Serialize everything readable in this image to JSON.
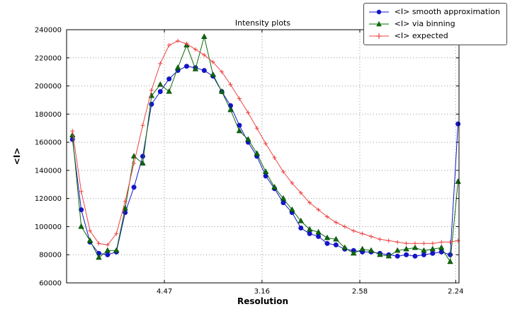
{
  "chart_data": {
    "type": "line",
    "title": "Intensity plots",
    "xlabel": "Resolution",
    "ylabel": "<I>",
    "grid": true,
    "legend_position": "upper right outside axes",
    "xlim": [
      0,
      0.201
    ],
    "ylim": [
      60000,
      240000
    ],
    "yticks": [
      60000,
      80000,
      100000,
      120000,
      140000,
      160000,
      180000,
      200000,
      220000,
      240000
    ],
    "xticks": [
      {
        "value": 0.0501,
        "label": "4.47"
      },
      {
        "value": 0.1001,
        "label": "3.16"
      },
      {
        "value": 0.1502,
        "label": "2.58"
      },
      {
        "value": 0.1993,
        "label": "2.24"
      }
    ],
    "x": [
      0.003,
      0.0075,
      0.012,
      0.0165,
      0.021,
      0.0255,
      0.03,
      0.0345,
      0.039,
      0.0435,
      0.048,
      0.0525,
      0.057,
      0.0615,
      0.066,
      0.0705,
      0.075,
      0.0795,
      0.084,
      0.0885,
      0.093,
      0.0975,
      0.102,
      0.1065,
      0.111,
      0.1155,
      0.12,
      0.1245,
      0.129,
      0.1335,
      0.138,
      0.1425,
      0.147,
      0.1515,
      0.156,
      0.1605,
      0.165,
      0.1695,
      0.174,
      0.1785,
      0.183,
      0.1875,
      0.192,
      0.1965,
      0.2005
    ],
    "series": [
      {
        "id": "smooth",
        "name": "<I> smooth approximation",
        "color": "#1414c8",
        "marker": "circle",
        "values": [
          162000,
          112000,
          89000,
          81000,
          80000,
          82000,
          110000,
          128000,
          150000,
          187000,
          196000,
          205000,
          211000,
          214000,
          213000,
          211000,
          207000,
          196000,
          186000,
          172000,
          160000,
          150000,
          136000,
          127000,
          117000,
          110000,
          99000,
          95000,
          93000,
          88000,
          87000,
          84000,
          83000,
          82000,
          82000,
          81000,
          80000,
          79000,
          80000,
          79000,
          80000,
          81000,
          82000,
          80000,
          173000
        ]
      },
      {
        "id": "binning",
        "name": "<I> via binning",
        "color": "#0b6b0b",
        "marker": "triangle",
        "values": [
          165000,
          100000,
          90000,
          78000,
          83000,
          83000,
          113000,
          150000,
          145000,
          193000,
          201000,
          196000,
          213000,
          229000,
          212000,
          235000,
          208000,
          196000,
          183000,
          168000,
          162000,
          152000,
          139000,
          128000,
          120000,
          112000,
          104000,
          98000,
          96000,
          92000,
          91000,
          85000,
          81000,
          84000,
          83000,
          80000,
          79000,
          83000,
          84000,
          85000,
          83000,
          84000,
          85000,
          75000,
          132000
        ]
      },
      {
        "id": "expected",
        "name": "<I> expected",
        "color": "#ee4444",
        "marker": "plus",
        "values": [
          168000,
          125000,
          97000,
          88000,
          87000,
          95000,
          118000,
          145000,
          172000,
          197000,
          216000,
          229000,
          232000,
          230000,
          226000,
          222000,
          217000,
          210000,
          201000,
          191000,
          181000,
          170000,
          159000,
          149000,
          139000,
          131000,
          124000,
          117000,
          112000,
          107000,
          103000,
          100000,
          97000,
          95000,
          93000,
          91000,
          90000,
          89000,
          88000,
          88000,
          88000,
          88000,
          89000,
          89000,
          90000
        ]
      }
    ]
  }
}
